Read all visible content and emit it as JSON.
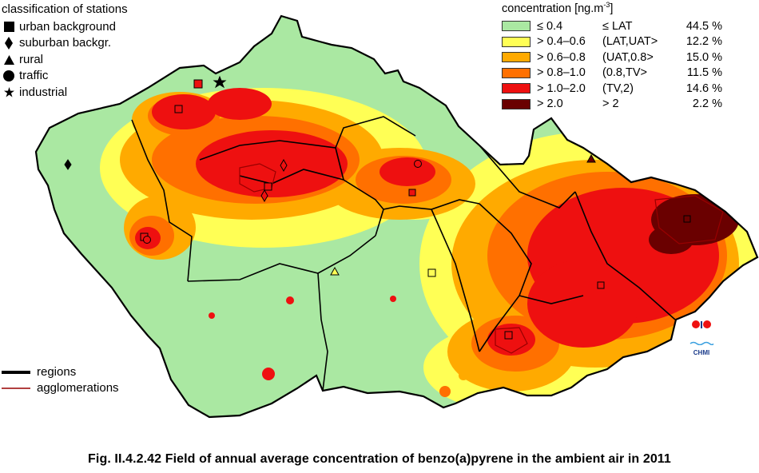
{
  "legend_stations": {
    "title": "classification of stations",
    "items": [
      {
        "label": "urban background",
        "icon": "square-icon"
      },
      {
        "label": "suburban backgr.",
        "icon": "diamond-icon"
      },
      {
        "label": "rural",
        "icon": "triangle-icon"
      },
      {
        "label": "traffic",
        "icon": "circle-icon"
      },
      {
        "label": "industrial",
        "icon": "star-icon"
      }
    ]
  },
  "legend_concentration": {
    "title": "concentration [ng.m",
    "title_exp": "-3",
    "title_close": "]",
    "classes": [
      {
        "range": "≤ 0.4",
        "limit": "≤ LAT",
        "percent": "44.5 %",
        "color": "#aae8a2"
      },
      {
        "range": "> 0.4–0.6",
        "limit": "(LAT,UAT>",
        "percent": "12.2 %",
        "color": "#ffff55"
      },
      {
        "range": "> 0.6–0.8",
        "limit": "(UAT,0.8>",
        "percent": "15.0 %",
        "color": "#ffaa00"
      },
      {
        "range": "> 0.8–1.0",
        "limit": "(0.8,TV>",
        "percent": "11.5 %",
        "color": "#ff7000"
      },
      {
        "range": "> 1.0–2.0",
        "limit": "(TV,2)",
        "percent": "14.6 %",
        "color": "#ee1010"
      },
      {
        "range": "> 2.0",
        "limit": "> 2",
        "percent": "2.2 %",
        "color": "#6a0000"
      }
    ]
  },
  "legend_lines": {
    "regions_label": "regions",
    "agglomerations_label": "agglomerations",
    "regions_color": "#000000",
    "agglomerations_color": "#990000"
  },
  "logo": {
    "text": "CHMI"
  },
  "caption": "Fig. II.4.2.42  Field of annual average concentration of benzo(a)pyrene in the ambient air in 2011"
}
